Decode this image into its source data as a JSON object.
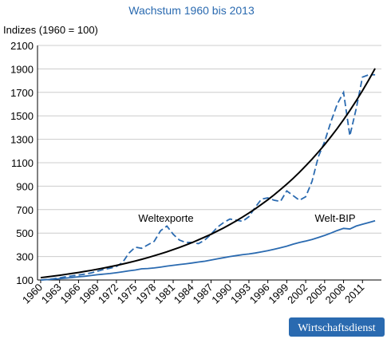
{
  "chart_data": {
    "type": "line",
    "title": "Wachstum 1960 bis 2013",
    "y_label": "Indizes (1960 = 100)",
    "x": [
      1960,
      1961,
      1962,
      1963,
      1964,
      1965,
      1966,
      1967,
      1968,
      1969,
      1970,
      1971,
      1972,
      1973,
      1974,
      1975,
      1976,
      1977,
      1978,
      1979,
      1980,
      1981,
      1982,
      1983,
      1984,
      1985,
      1986,
      1987,
      1988,
      1989,
      1990,
      1991,
      1992,
      1993,
      1994,
      1995,
      1996,
      1997,
      1998,
      1999,
      2000,
      2001,
      2002,
      2003,
      2004,
      2005,
      2006,
      2007,
      2008,
      2009,
      2010,
      2011,
      2012,
      2013
    ],
    "series": [
      {
        "name": "Weltexporte",
        "color": "#2a6ab0",
        "dashed": true,
        "values": [
          100,
          104,
          110,
          118,
          128,
          135,
          142,
          150,
          160,
          175,
          190,
          200,
          215,
          250,
          330,
          380,
          370,
          400,
          430,
          520,
          560,
          490,
          440,
          420,
          420,
          410,
          440,
          490,
          550,
          590,
          620,
          610,
          600,
          640,
          720,
          790,
          800,
          780,
          770,
          860,
          820,
          780,
          810,
          940,
          1150,
          1280,
          1450,
          1600,
          1700,
          1330,
          1560,
          1830,
          1850,
          1850
        ]
      },
      {
        "name": "Welt-BIP",
        "color": "#2a6ab0",
        "dashed": false,
        "values": [
          100,
          103,
          107,
          111,
          116,
          121,
          127,
          132,
          138,
          145,
          150,
          155,
          162,
          170,
          178,
          185,
          195,
          198,
          203,
          210,
          218,
          225,
          232,
          238,
          245,
          253,
          260,
          270,
          280,
          290,
          300,
          308,
          316,
          322,
          330,
          340,
          350,
          362,
          375,
          388,
          405,
          420,
          432,
          445,
          462,
          480,
          500,
          522,
          540,
          535,
          560,
          575,
          590,
          605
        ]
      },
      {
        "color": "#000000",
        "dashed": false,
        "values": [
          120,
          126,
          133,
          140,
          148,
          156,
          164,
          173,
          182,
          192,
          202,
          213,
          224,
          236,
          249,
          262,
          276,
          291,
          307,
          323,
          340,
          359,
          378,
          398,
          419,
          442,
          466,
          490,
          517,
          544,
          574,
          604,
          637,
          671,
          707,
          745,
          784,
          826,
          871,
          917,
          966,
          1018,
          1073,
          1130,
          1191,
          1254,
          1322,
          1392,
          1467,
          1545,
          1628,
          1715,
          1807,
          1904
        ]
      }
    ],
    "xlim": [
      1959.5,
      2014
    ],
    "xticks": [
      1960,
      1963,
      1966,
      1969,
      1972,
      1975,
      1978,
      1981,
      1984,
      1987,
      1990,
      1993,
      1996,
      1999,
      2002,
      2005,
      2008,
      2011
    ],
    "ylim": [
      100,
      2100
    ],
    "yticks": [
      100,
      300,
      500,
      700,
      900,
      1100,
      1300,
      1500,
      1700,
      1900,
      2100
    ],
    "grid": true,
    "source": "Wirtschaftsdienst"
  }
}
